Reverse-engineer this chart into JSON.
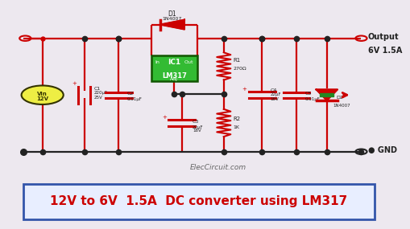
{
  "bg_color": "#ede8ef",
  "title": "12V to 6V  1.5A  DC converter using LM317",
  "title_color": "#cc0000",
  "title_bg": "#e8eeff",
  "title_border": "#3355aa",
  "watermark": "ElecCircuit.com",
  "output_label": "Output\n6V 1.5A",
  "gnd_label": "GND",
  "wire_red": "#cc0000",
  "wire_blk": "#222222",
  "ic_fill": "#33bb33",
  "ic_edge": "#115500",
  "bat_fill": "#eeee44",
  "bat_edge": "#333300"
}
